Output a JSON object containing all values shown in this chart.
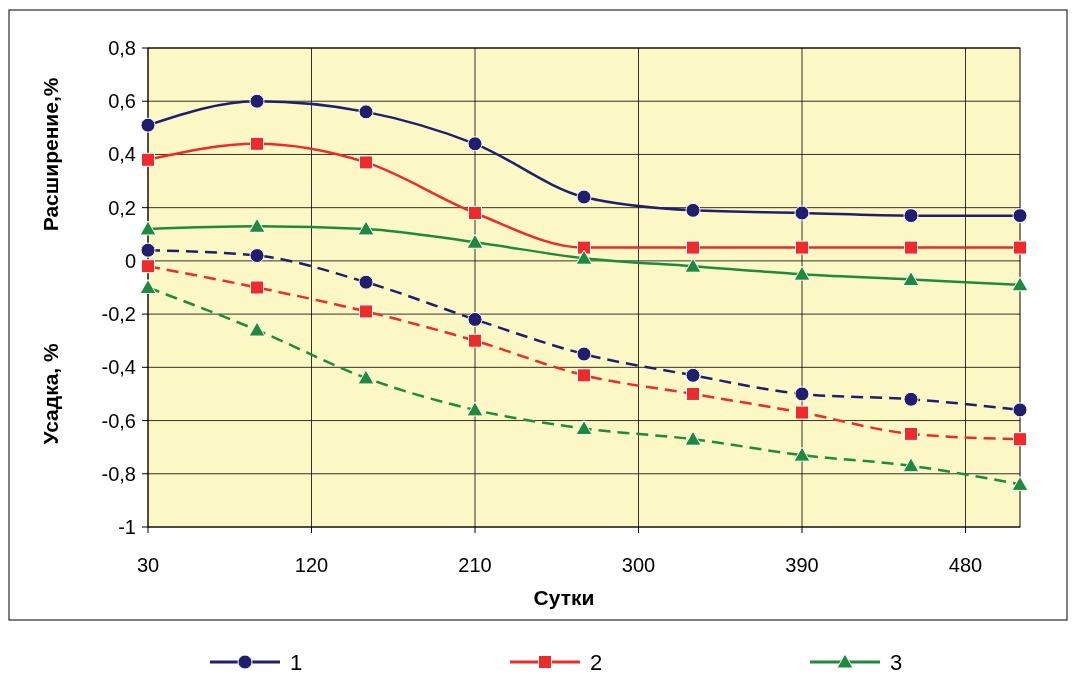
{
  "chart_data": {
    "type": "line",
    "xlabel": "Сутки",
    "ylabel": "Расширение,%",
    "annotations": [
      "Усадка, %"
    ],
    "x": [
      30,
      90,
      150,
      210,
      270,
      330,
      390,
      450,
      510
    ],
    "xlim": [
      30,
      510
    ],
    "xticks": [
      30,
      120,
      210,
      300,
      390,
      480
    ],
    "ylim": [
      -1,
      0.8
    ],
    "yticks": [
      {
        "value": 0.8,
        "label": "0,8"
      },
      {
        "value": 0.6,
        "label": "0,6"
      },
      {
        "value": 0.4,
        "label": "0,4"
      },
      {
        "value": 0.2,
        "label": "0,2"
      },
      0,
      {
        "value": -0.2,
        "label": "-0,2"
      },
      {
        "value": -0.4,
        "label": "-0,4"
      },
      {
        "value": -0.6,
        "label": "-0,6"
      },
      {
        "value": -0.8,
        "label": "-0,8"
      },
      -1
    ],
    "grid": true,
    "legend": "bottom",
    "series": [
      {
        "name": "1",
        "color": "#1f1f6e",
        "marker": "circle",
        "line_style": "solid",
        "values": [
          0.51,
          0.6,
          0.56,
          0.44,
          0.24,
          0.19,
          0.18,
          0.17,
          0.17
        ]
      },
      {
        "name": "2",
        "color": "#ee2a2a",
        "marker": "square",
        "line_style": "solid",
        "values": [
          0.38,
          0.44,
          0.37,
          0.18,
          0.05,
          0.05,
          0.05,
          0.05,
          0.05
        ]
      },
      {
        "name": "3",
        "color": "#1e8a3c",
        "marker": "triangle",
        "line_style": "solid",
        "values": [
          0.12,
          0.13,
          0.12,
          0.07,
          0.01,
          -0.02,
          -0.05,
          -0.07,
          -0.09
        ]
      },
      {
        "color": "#1f1f6e",
        "marker": "circle",
        "line_style": "dashed",
        "values": [
          0.04,
          0.02,
          -0.08,
          -0.22,
          -0.35,
          -0.43,
          -0.5,
          -0.52,
          -0.56
        ]
      },
      {
        "color": "#ee2a2a",
        "marker": "square",
        "line_style": "dashed",
        "values": [
          -0.02,
          -0.1,
          -0.19,
          -0.3,
          -0.43,
          -0.5,
          -0.57,
          -0.65,
          -0.67
        ]
      },
      {
        "color": "#1e8a3c",
        "marker": "triangle",
        "line_style": "dashed",
        "values": [
          -0.1,
          -0.26,
          -0.44,
          -0.56,
          -0.63,
          -0.67,
          -0.73,
          -0.77,
          -0.84
        ]
      }
    ]
  }
}
